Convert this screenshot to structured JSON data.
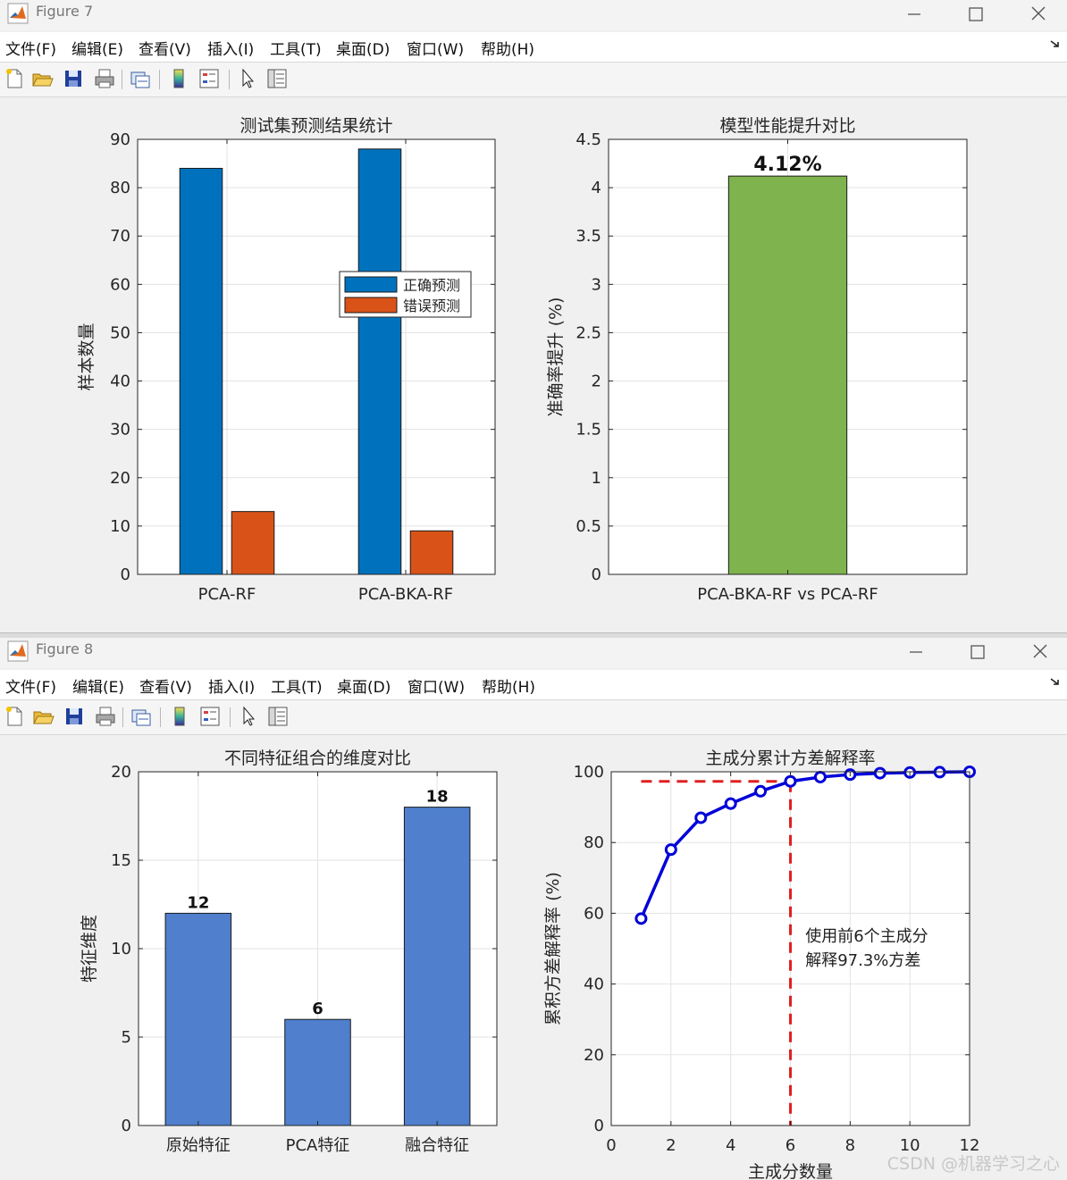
{
  "windows": [
    {
      "title": "Figure 7",
      "menu": [
        "文件(F)",
        "编辑(E)",
        "查看(V)",
        "插入(I)",
        "工具(T)",
        "桌面(D)",
        "窗口(W)",
        "帮助(H)"
      ]
    },
    {
      "title": "Figure 8",
      "menu": [
        "文件(F)",
        "编辑(E)",
        "查看(V)",
        "插入(I)",
        "工具(T)",
        "桌面(D)",
        "窗口(W)",
        "帮助(H)"
      ]
    }
  ],
  "toolbar_icons": [
    "new-file-icon",
    "open-folder-icon",
    "save-icon",
    "print-icon",
    "copy-figure-icon",
    "colorbar-icon",
    "legend-icon",
    "pointer-icon",
    "property-inspector-icon"
  ],
  "watermark": "CSDN @机器学习之心",
  "chart_data": [
    {
      "type": "bar",
      "title": "测试集预测结果统计",
      "ylabel": "样本数量",
      "xlabel": "",
      "categories": [
        "PCA-RF",
        "PCA-BKA-RF"
      ],
      "series": [
        {
          "name": "正确预测",
          "values": [
            84,
            88
          ],
          "color": "#0072bd"
        },
        {
          "name": "错误预测",
          "values": [
            13,
            9
          ],
          "color": "#d95319"
        }
      ],
      "ylim": [
        0,
        90
      ],
      "yticks": [
        0,
        10,
        20,
        30,
        40,
        50,
        60,
        70,
        80,
        90
      ],
      "grid": true,
      "legend": "center-right"
    },
    {
      "type": "bar",
      "title": "模型性能提升对比",
      "ylabel": "准确率提升 (%)",
      "xlabel": "",
      "categories": [
        "PCA-BKA-RF vs PCA-RF"
      ],
      "values": [
        4.12
      ],
      "data_labels": [
        "4.12%"
      ],
      "color": "#7fb34d",
      "ylim": [
        0,
        4.5
      ],
      "yticks": [
        0,
        0.5,
        1,
        1.5,
        2,
        2.5,
        3,
        3.5,
        4,
        4.5
      ],
      "grid": true
    },
    {
      "type": "bar",
      "title": "不同特征组合的维度对比",
      "ylabel": "特征维度",
      "xlabel": "",
      "categories": [
        "原始特征",
        "PCA特征",
        "融合特征"
      ],
      "values": [
        12,
        6,
        18
      ],
      "data_labels": [
        "12",
        "6",
        "18"
      ],
      "color": "#4f7fcd",
      "ylim": [
        0,
        20
      ],
      "yticks": [
        0,
        5,
        10,
        15,
        20
      ],
      "grid": true
    },
    {
      "type": "line",
      "title": "主成分累计方差解释率",
      "ylabel": "累积方差解释率 (%)",
      "xlabel": "主成分数量",
      "x": [
        1,
        2,
        3,
        4,
        5,
        6,
        7,
        8,
        9,
        10,
        11,
        12
      ],
      "values": [
        58.5,
        78,
        87,
        91,
        94.5,
        97.3,
        98.5,
        99.2,
        99.6,
        99.8,
        99.9,
        100
      ],
      "color": "#0000d9",
      "xlim": [
        0,
        12
      ],
      "ylim": [
        0,
        100
      ],
      "xticks": [
        0,
        2,
        4,
        6,
        8,
        10,
        12
      ],
      "yticks": [
        0,
        20,
        40,
        60,
        80,
        100
      ],
      "reference_lines": {
        "x": 6,
        "y": 97.3,
        "color": "#e02020"
      },
      "annotation": {
        "lines": [
          "使用前6个主成分",
          "解释97.3%方差"
        ],
        "x": 6.5,
        "y": 52
      },
      "grid": true
    }
  ]
}
